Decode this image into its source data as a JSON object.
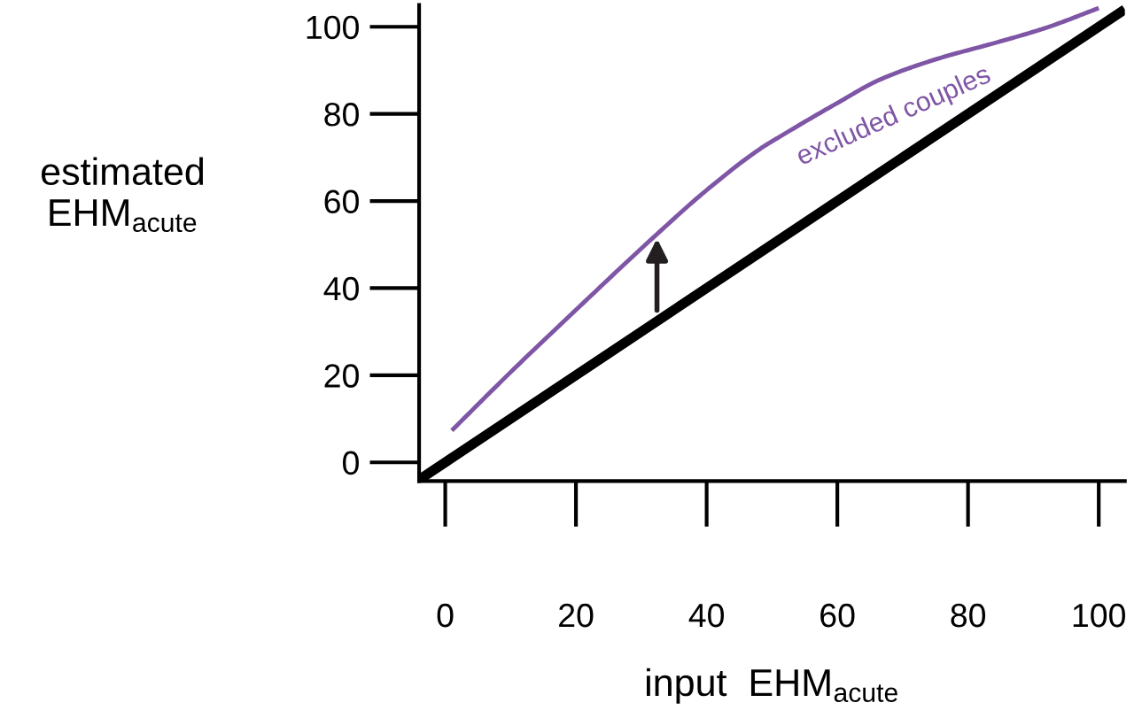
{
  "chart_data": {
    "type": "line",
    "xlabel": "input  EHM$_{acute}$",
    "ylabel": "estimated\nEHM$_{acute}$",
    "xlim": [
      -4,
      104
    ],
    "ylim": [
      -4.3,
      105
    ],
    "xticks": [
      0,
      20,
      40,
      60,
      80,
      100
    ],
    "yticks": [
      0,
      20,
      40,
      60,
      80,
      100
    ],
    "grid": false,
    "legend": false,
    "marker": "none",
    "line_style": "solid",
    "series": [
      {
        "color": "#000000",
        "x": [
          -4,
          104
        ],
        "values": [
          -4,
          104
        ]
      },
      {
        "name": "excluded couples",
        "color": "#7f55a5",
        "x": [
          1,
          10,
          20,
          32.4,
          40,
          48.4,
          51,
          60,
          66.4,
          75,
          84.6,
          92,
          100
        ],
        "values": [
          7.3,
          20.7,
          35,
          52.4,
          62.5,
          72.2,
          74.6,
          82.5,
          87.8,
          92.5,
          96.5,
          99.8,
          104.3
        ]
      }
    ]
  }
}
